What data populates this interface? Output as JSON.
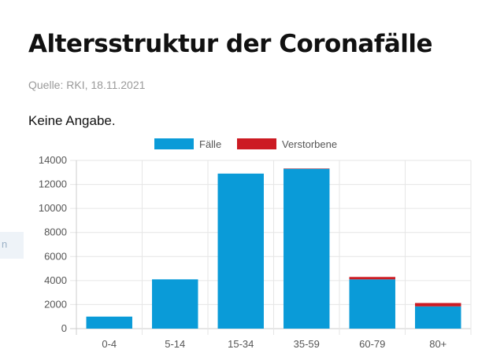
{
  "header": {
    "title": "Altersstruktur der Coronafälle",
    "source": "Quelle: RKI, 18.11.2021",
    "note": "Keine Angabe."
  },
  "colors": {
    "faelle": "#0a9bd8",
    "verstorbene": "#cc1b23",
    "grid": "#e6e6e6",
    "axis": "#cccccc"
  },
  "chart_data": {
    "type": "bar",
    "stacked": true,
    "categories": [
      "0-4",
      "5-14",
      "15-34",
      "35-59",
      "60-79",
      "80+"
    ],
    "series": [
      {
        "name": "Fälle",
        "values": [
          1000,
          4100,
          12900,
          13300,
          4100,
          1850
        ]
      },
      {
        "name": "Verstorbene",
        "values": [
          0,
          0,
          0,
          30,
          200,
          280
        ]
      }
    ],
    "yticks": [
      0,
      2000,
      4000,
      6000,
      8000,
      10000,
      12000,
      14000
    ],
    "ylim": [
      0,
      14000
    ],
    "grid": true,
    "legend": "top-center"
  }
}
